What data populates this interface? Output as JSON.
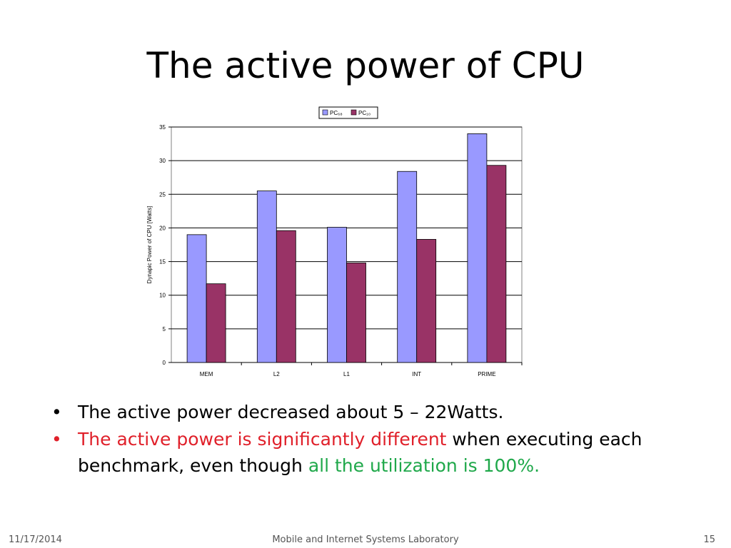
{
  "slide": {
    "title": "The active power of CPU",
    "bullets": [
      {
        "mark": "•",
        "text": "The active power decreased about 5 – 22Watts."
      },
      {
        "mark": "•",
        "red": "The active power is significantly different",
        "plain": " when executing each benchmark, even though ",
        "green": "all the utilization is 100%."
      }
    ],
    "footer": {
      "date": "11/17/2014",
      "center": "Mobile and Internet Systems Laboratory",
      "page": "15"
    }
  },
  "colors": {
    "series1": "#9999ff",
    "series2": "#993366",
    "red_text": "#e0202a",
    "green_text": "#1fa84a"
  },
  "chart_data": {
    "type": "bar",
    "categories": [
      "MEM",
      "L2",
      "L1",
      "INT",
      "PRIME"
    ],
    "series": [
      {
        "name": "PC₆₈",
        "values": [
          19,
          25.5,
          20.1,
          28.4,
          34
        ]
      },
      {
        "name": "PC₁₀",
        "values": [
          11.7,
          19.6,
          14.8,
          18.3,
          29.3
        ]
      }
    ],
    "ylabel": "Dynapic Power of CPU [Watts]",
    "xlabel": "",
    "ylim": [
      0,
      35
    ],
    "yticks": [
      0,
      5,
      10,
      15,
      20,
      25,
      30,
      35
    ],
    "grid": true,
    "legend": "top-center"
  }
}
